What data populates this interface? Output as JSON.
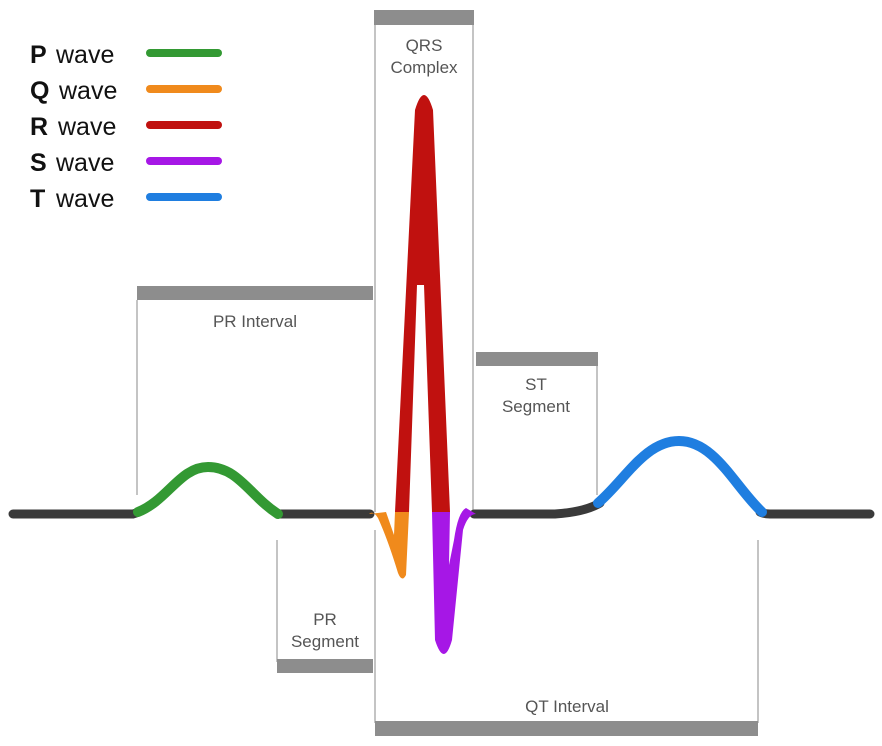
{
  "legend": [
    {
      "key": "P",
      "word": "wave",
      "color": "#339933"
    },
    {
      "key": "Q",
      "word": "wave",
      "color": "#f08a1c"
    },
    {
      "key": "R",
      "word": "wave",
      "color": "#c0110f"
    },
    {
      "key": "S",
      "word": "wave",
      "color": "#a617e6"
    },
    {
      "key": "T",
      "word": "wave",
      "color": "#1f7ee0"
    }
  ],
  "labels": {
    "qrs_line1": "QRS",
    "qrs_line2": "Complex",
    "pr_interval": "PR Interval",
    "st_line1": "ST",
    "st_line2": "Segment",
    "pr_seg_line1": "PR",
    "pr_seg_line2": "Segment",
    "qt_interval": "QT Interval"
  },
  "colors": {
    "baseline": "#3a3a3a",
    "bracket_bar": "#8d8d8d",
    "bracket_line": "#c4c4c4"
  }
}
